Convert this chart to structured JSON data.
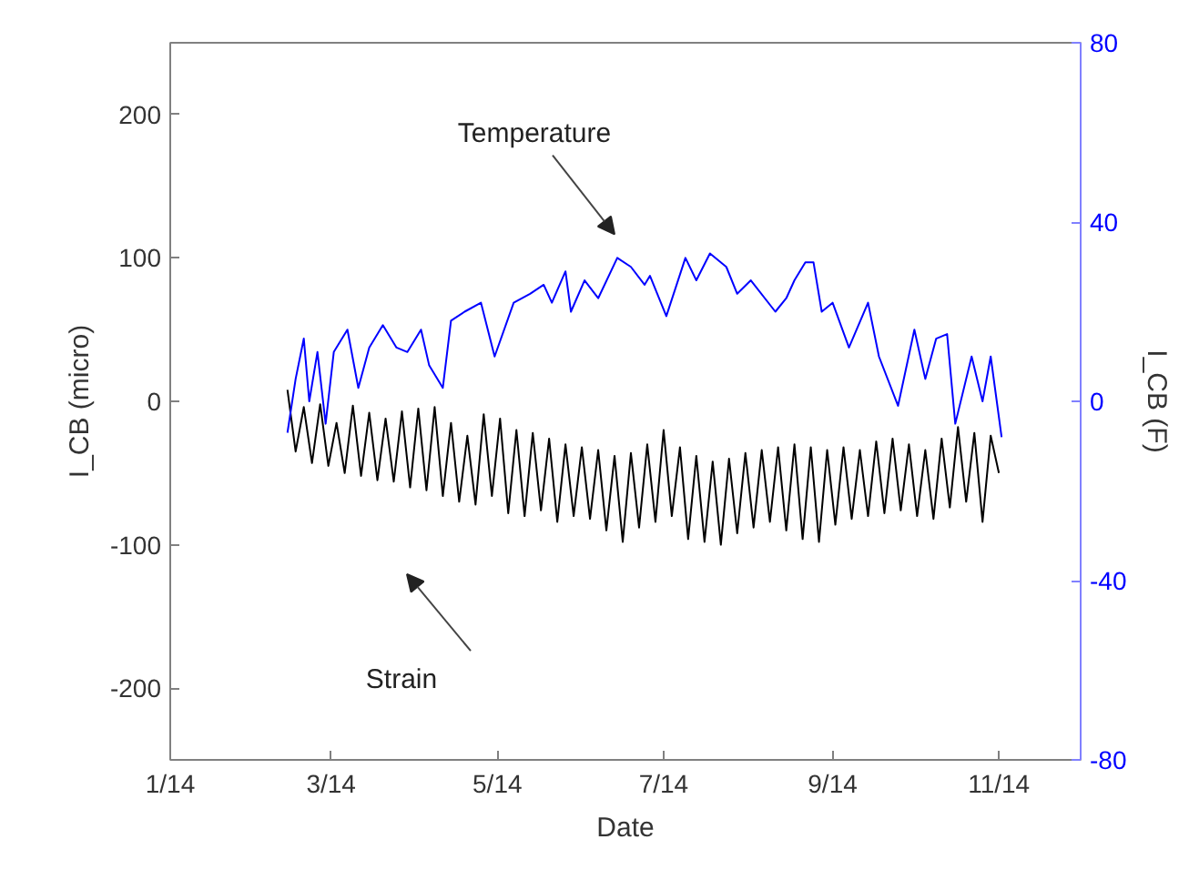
{
  "chart_data": {
    "type": "line",
    "xlabel": "Date",
    "ylabel": "I_CB (micro)",
    "y2label": "I_CB (F)",
    "xlim": [
      "2014-01-01",
      "2014-12-01"
    ],
    "xticks": [
      {
        "value": "2014-01-01",
        "label": "1/14"
      },
      {
        "value": "2014-03-01",
        "label": "3/14"
      },
      {
        "value": "2014-05-01",
        "label": "5/14"
      },
      {
        "value": "2014-07-01",
        "label": "7/14"
      },
      {
        "value": "2014-09-01",
        "label": "9/14"
      },
      {
        "value": "2014-11-01",
        "label": "11/14"
      }
    ],
    "ylim": [
      -250,
      250
    ],
    "yticks": [
      -200,
      -100,
      0,
      100,
      200
    ],
    "y2lim": [
      -80,
      80
    ],
    "y2ticks": [
      -80,
      -40,
      0,
      40,
      80
    ],
    "grid": false,
    "annotations": [
      "Temperature",
      "Strain"
    ],
    "series": [
      {
        "color": "#000000",
        "x": [
          "2014-02-13",
          "2014-02-16",
          "2014-02-19",
          "2014-02-22",
          "2014-02-25",
          "2014-02-28",
          "2014-03-03",
          "2014-03-06",
          "2014-03-09",
          "2014-03-12",
          "2014-03-15",
          "2014-03-18",
          "2014-03-21",
          "2014-03-24",
          "2014-03-27",
          "2014-03-30",
          "2014-04-02",
          "2014-04-05",
          "2014-04-08",
          "2014-04-11",
          "2014-04-14",
          "2014-04-17",
          "2014-04-20",
          "2014-04-23",
          "2014-04-26",
          "2014-04-29",
          "2014-05-02",
          "2014-05-05",
          "2014-05-08",
          "2014-05-11",
          "2014-05-14",
          "2014-05-17",
          "2014-05-20",
          "2014-05-23",
          "2014-05-26",
          "2014-05-29",
          "2014-06-01",
          "2014-06-04",
          "2014-06-07",
          "2014-06-10",
          "2014-06-13",
          "2014-06-16",
          "2014-06-19",
          "2014-06-22",
          "2014-06-25",
          "2014-06-28",
          "2014-07-01",
          "2014-07-04",
          "2014-07-07",
          "2014-07-10",
          "2014-07-13",
          "2014-07-16",
          "2014-07-19",
          "2014-07-22",
          "2014-07-25",
          "2014-07-28",
          "2014-07-31",
          "2014-08-03",
          "2014-08-06",
          "2014-08-09",
          "2014-08-12",
          "2014-08-15",
          "2014-08-18",
          "2014-08-21",
          "2014-08-24",
          "2014-08-27",
          "2014-08-30",
          "2014-09-02",
          "2014-09-05",
          "2014-09-08",
          "2014-09-11",
          "2014-09-14",
          "2014-09-17",
          "2014-09-20",
          "2014-09-23",
          "2014-09-26",
          "2014-09-29",
          "2014-10-02",
          "2014-10-05",
          "2014-10-08",
          "2014-10-11",
          "2014-10-14",
          "2014-10-17",
          "2014-10-20",
          "2014-10-23",
          "2014-10-26",
          "2014-10-29",
          "2014-11-01"
        ],
        "values": [
          8,
          -35,
          -4,
          -43,
          -2,
          -45,
          -15,
          -50,
          -3,
          -52,
          -8,
          -55,
          -12,
          -56,
          -7,
          -60,
          -5,
          -62,
          -4,
          -66,
          -15,
          -70,
          -24,
          -72,
          -9,
          -66,
          -12,
          -78,
          -20,
          -80,
          -22,
          -76,
          -26,
          -84,
          -30,
          -80,
          -32,
          -82,
          -34,
          -90,
          -38,
          -98,
          -36,
          -88,
          -30,
          -84,
          -20,
          -80,
          -32,
          -96,
          -38,
          -98,
          -42,
          -100,
          -40,
          -92,
          -36,
          -88,
          -34,
          -84,
          -32,
          -90,
          -30,
          -96,
          -32,
          -98,
          -34,
          -86,
          -32,
          -82,
          -34,
          -80,
          -28,
          -78,
          -26,
          -76,
          -30,
          -80,
          -34,
          -82,
          -26,
          -74,
          -18,
          -70,
          -22,
          -84,
          -24,
          -50
        ]
      },
      {
        "color": "#0000ff",
        "axis": "y2",
        "x": [
          "2014-02-13",
          "2014-02-16",
          "2014-02-19",
          "2014-02-21",
          "2014-02-24",
          "2014-02-27",
          "2014-03-02",
          "2014-03-07",
          "2014-03-11",
          "2014-03-15",
          "2014-03-20",
          "2014-03-25",
          "2014-03-29",
          "2014-04-03",
          "2014-04-06",
          "2014-04-11",
          "2014-04-14",
          "2014-04-19",
          "2014-04-25",
          "2014-04-30",
          "2014-05-07",
          "2014-05-13",
          "2014-05-18",
          "2014-05-21",
          "2014-05-26",
          "2014-05-28",
          "2014-06-02",
          "2014-06-07",
          "2014-06-14",
          "2014-06-19",
          "2014-06-24",
          "2014-06-26",
          "2014-07-02",
          "2014-07-09",
          "2014-07-13",
          "2014-07-18",
          "2014-07-24",
          "2014-07-28",
          "2014-08-02",
          "2014-08-11",
          "2014-08-15",
          "2014-08-18",
          "2014-08-22",
          "2014-08-25",
          "2014-08-28",
          "2014-09-01",
          "2014-09-07",
          "2014-09-14",
          "2014-09-18",
          "2014-09-25",
          "2014-10-01",
          "2014-10-05",
          "2014-10-09",
          "2014-10-13",
          "2014-10-16",
          "2014-10-22",
          "2014-10-26",
          "2014-10-29",
          "2014-11-02"
        ],
        "values": [
          -7,
          5,
          14,
          0,
          11,
          -5,
          11,
          16,
          3,
          12,
          17,
          12,
          11,
          16,
          8,
          3,
          18,
          20,
          22,
          10,
          22,
          24,
          26,
          22,
          29,
          20,
          27,
          23,
          32,
          30,
          26,
          28,
          19,
          32,
          27,
          33,
          30,
          24,
          27,
          20,
          23,
          27,
          31,
          31,
          20,
          22,
          12,
          22,
          10,
          -1,
          16,
          5,
          14,
          15,
          -5,
          10,
          0,
          10,
          -8
        ]
      }
    ]
  }
}
